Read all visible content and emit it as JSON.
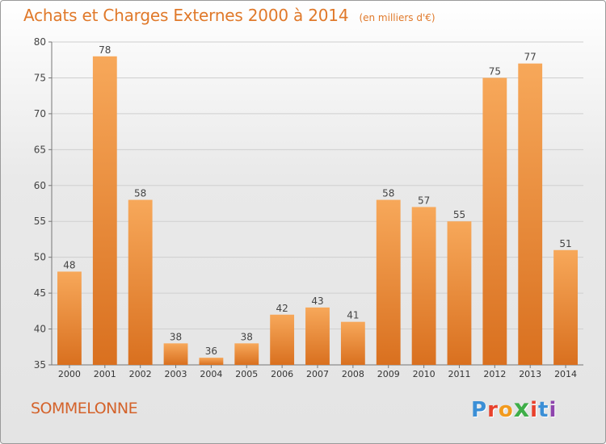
{
  "header": {
    "title": "Achats et Charges Externes 2000 à 2014",
    "unit": "(en milliers d'€)"
  },
  "footer": {
    "commune": "SOMMELONNE",
    "brand": "Proxiti"
  },
  "colors": {
    "accent": "#e0792a",
    "bar_light": "#f7a85a",
    "bar_dark": "#d9701f",
    "brand_letters": [
      "#3b8fd6",
      "#e8412c",
      "#f29a1d",
      "#3fae49",
      "#e8412c",
      "#3b8fd6",
      "#8e44ad"
    ]
  },
  "chart_data": {
    "type": "bar",
    "title": "Achats et Charges Externes 2000 à 2014",
    "subtitle": "(en milliers d'€)",
    "xlabel": "",
    "ylabel": "",
    "categories": [
      "2000",
      "2001",
      "2002",
      "2003",
      "2004",
      "2005",
      "2006",
      "2007",
      "2008",
      "2009",
      "2010",
      "2011",
      "2012",
      "2013",
      "2014"
    ],
    "values": [
      48,
      78,
      58,
      38,
      36,
      38,
      42,
      43,
      41,
      58,
      57,
      55,
      75,
      77,
      51
    ],
    "ylim": [
      35,
      80
    ],
    "yticks": [
      35,
      40,
      45,
      50,
      55,
      60,
      65,
      70,
      75,
      80
    ],
    "grid": true,
    "data_labels": true
  }
}
